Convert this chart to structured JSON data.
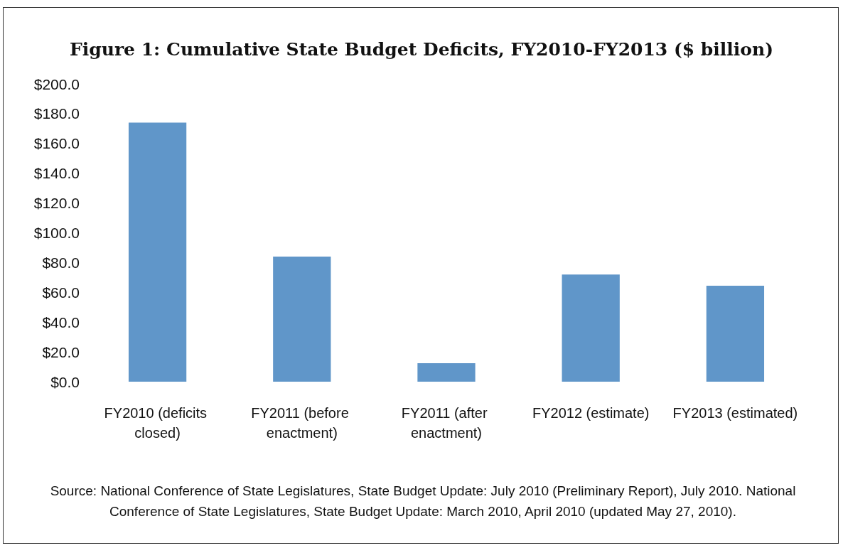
{
  "chart_data": {
    "type": "bar",
    "title": "Figure 1: Cumulative State Budget Deficits, FY2010-FY2013 ($ billion)",
    "categories": [
      "FY2010 (deficits closed)",
      "FY2011 (before enactment)",
      "FY2011 (after enactment)",
      "FY2012 (estimate)",
      "FY2013 (estimated)"
    ],
    "values": [
      174,
      84,
      12.4,
      72,
      64.4
    ],
    "color": "#6096c9",
    "ylim": [
      0,
      200
    ],
    "yticks": [
      {
        "value": 0,
        "label": "$0.0"
      },
      {
        "value": 20,
        "label": "$20.0"
      },
      {
        "value": 40,
        "label": "$40.0"
      },
      {
        "value": 60,
        "label": "$60.0"
      },
      {
        "value": 80,
        "label": "$80.0"
      },
      {
        "value": 100,
        "label": "$100.0"
      },
      {
        "value": 120,
        "label": "$120.0"
      },
      {
        "value": 140,
        "label": "$140.0"
      },
      {
        "value": 160,
        "label": "$160.0"
      },
      {
        "value": 180,
        "label": "$180.0"
      },
      {
        "value": 200,
        "label": "$200.0"
      }
    ],
    "grid": false,
    "annotations": [
      "Source: National Conference of State Legislatures, State Budget Update: July 2010 (Preliminary Report), July 2010. National Conference of State Legislatures, State Budget Update: March 2010, April 2010 (updated May 27, 2010)."
    ]
  }
}
